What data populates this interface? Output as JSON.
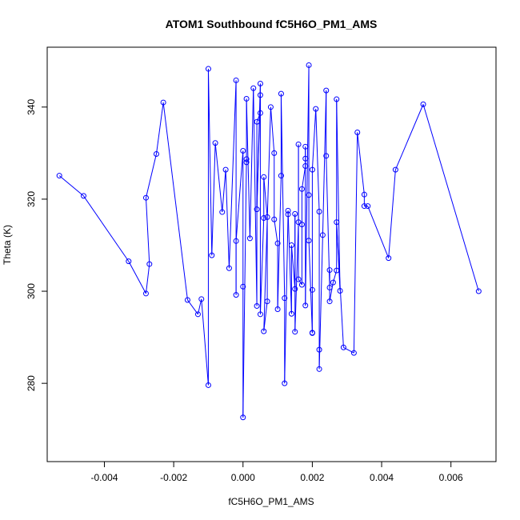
{
  "chart_data": {
    "type": "scatter",
    "connected": true,
    "title": "ATOM1 Southbound fC5H6O_PM1_AMS",
    "xlabel": "fC5H6O_PM1_AMS",
    "ylabel": "Theta (K)",
    "xlim": [
      -0.00565,
      0.0073
    ],
    "ylim": [
      263,
      353
    ],
    "xticks": [
      -0.004,
      -0.002,
      0.0,
      0.002,
      0.004,
      0.006
    ],
    "xtick_labels": [
      "-0.004",
      "-0.002",
      "0.000",
      "0.002",
      "0.004",
      "0.006"
    ],
    "yticks": [
      280,
      300,
      320,
      340
    ],
    "ytick_labels": [
      "280",
      "300",
      "320",
      "340"
    ],
    "series_color": "#0000ff",
    "marker": "open-circle",
    "points": [
      [
        -0.0053,
        325.1
      ],
      [
        -0.0046,
        320.7
      ],
      [
        -0.0033,
        306.5
      ],
      [
        -0.0028,
        299.5
      ],
      [
        -0.0027,
        305.9
      ],
      [
        -0.0028,
        320.3
      ],
      [
        -0.0025,
        329.8
      ],
      [
        -0.0023,
        341.0
      ],
      [
        -0.0016,
        298.1
      ],
      [
        -0.0013,
        295.0
      ],
      [
        -0.0012,
        298.3
      ],
      [
        -0.001,
        279.6
      ],
      [
        -0.001,
        348.3
      ],
      [
        -0.0009,
        307.8
      ],
      [
        -0.0008,
        332.2
      ],
      [
        -0.0006,
        317.2
      ],
      [
        -0.0005,
        326.4
      ],
      [
        -0.0004,
        305.0
      ],
      [
        -0.0002,
        345.8
      ],
      [
        -0.0002,
        299.2
      ],
      [
        -0.0002,
        310.9
      ],
      [
        0.0,
        330.5
      ],
      [
        0.0,
        301.0
      ],
      [
        0.0,
        272.6
      ],
      [
        0.0001,
        328.7
      ],
      [
        0.0001,
        328.0
      ],
      [
        0.0001,
        341.8
      ],
      [
        0.0002,
        311.5
      ],
      [
        0.0003,
        344.1
      ],
      [
        0.0004,
        296.8
      ],
      [
        0.0004,
        336.8
      ],
      [
        0.0005,
        338.7
      ],
      [
        0.0005,
        345.1
      ],
      [
        0.0004,
        317.8
      ],
      [
        0.0005,
        342.6
      ],
      [
        0.0005,
        295.0
      ],
      [
        0.0006,
        315.9
      ],
      [
        0.0006,
        324.8
      ],
      [
        0.0007,
        316.1
      ],
      [
        0.0007,
        297.8
      ],
      [
        0.0006,
        291.3
      ],
      [
        0.0008,
        340.0
      ],
      [
        0.0009,
        330.0
      ],
      [
        0.0009,
        315.6
      ],
      [
        0.001,
        310.4
      ],
      [
        0.001,
        296.1
      ],
      [
        0.0011,
        325.1
      ],
      [
        0.0011,
        342.9
      ],
      [
        0.0012,
        298.5
      ],
      [
        0.0012,
        280.0
      ],
      [
        0.0013,
        316.7
      ],
      [
        0.0013,
        317.5
      ],
      [
        0.0014,
        295.1
      ],
      [
        0.0014,
        310.0
      ],
      [
        0.0015,
        300.5
      ],
      [
        0.0015,
        316.8
      ],
      [
        0.0015,
        291.2
      ],
      [
        0.0016,
        315.0
      ],
      [
        0.0016,
        331.9
      ],
      [
        0.0016,
        302.6
      ],
      [
        0.0017,
        301.4
      ],
      [
        0.0017,
        314.5
      ],
      [
        0.0017,
        322.2
      ],
      [
        0.0018,
        327.2
      ],
      [
        0.0018,
        331.4
      ],
      [
        0.0018,
        328.8
      ],
      [
        0.0018,
        296.9
      ],
      [
        0.0019,
        349.1
      ],
      [
        0.0019,
        320.9
      ],
      [
        0.0019,
        311.0
      ],
      [
        0.002,
        291.0
      ],
      [
        0.002,
        290.9
      ],
      [
        0.002,
        300.3
      ],
      [
        0.002,
        326.4
      ],
      [
        0.0021,
        339.6
      ],
      [
        0.0022,
        317.3
      ],
      [
        0.0022,
        287.3
      ],
      [
        0.0022,
        283.1
      ],
      [
        0.0023,
        312.2
      ],
      [
        0.0024,
        343.6
      ],
      [
        0.0024,
        329.4
      ],
      [
        0.0025,
        300.8
      ],
      [
        0.0025,
        304.6
      ],
      [
        0.0025,
        297.8
      ],
      [
        0.0026,
        301.9
      ],
      [
        0.0027,
        304.5
      ],
      [
        0.0027,
        341.7
      ],
      [
        0.0028,
        300.1
      ],
      [
        0.0027,
        315.0
      ],
      [
        0.0029,
        287.8
      ],
      [
        0.0032,
        286.6
      ],
      [
        0.0033,
        334.5
      ],
      [
        0.0035,
        321.0
      ],
      [
        0.0035,
        318.5
      ],
      [
        0.0036,
        318.5
      ],
      [
        0.0042,
        307.2
      ],
      [
        0.0044,
        326.4
      ],
      [
        0.0052,
        340.6
      ],
      [
        0.0068,
        300.0
      ]
    ]
  }
}
